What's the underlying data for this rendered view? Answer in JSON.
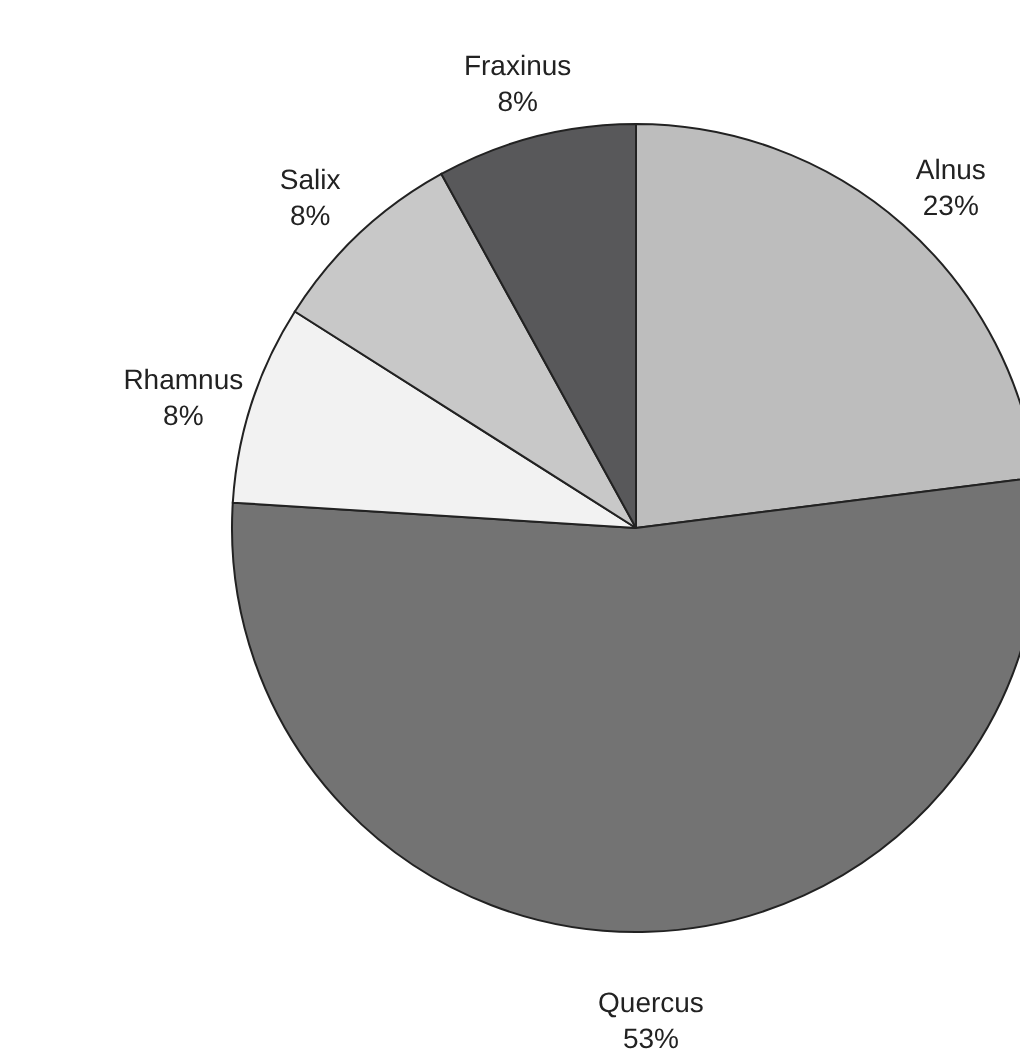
{
  "chart_data": {
    "type": "pie",
    "categories": [
      "Alnus",
      "Quercus",
      "Rhamnus",
      "Salix",
      "Fraxinus"
    ],
    "values": [
      23,
      53,
      8,
      8,
      8
    ],
    "value_labels": [
      "23%",
      "53%",
      "8%",
      "8%",
      "8%"
    ],
    "colors": [
      "#bdbdbd",
      "#737373",
      "#f2f2f2",
      "#c8c8c8",
      "#58585a"
    ]
  }
}
